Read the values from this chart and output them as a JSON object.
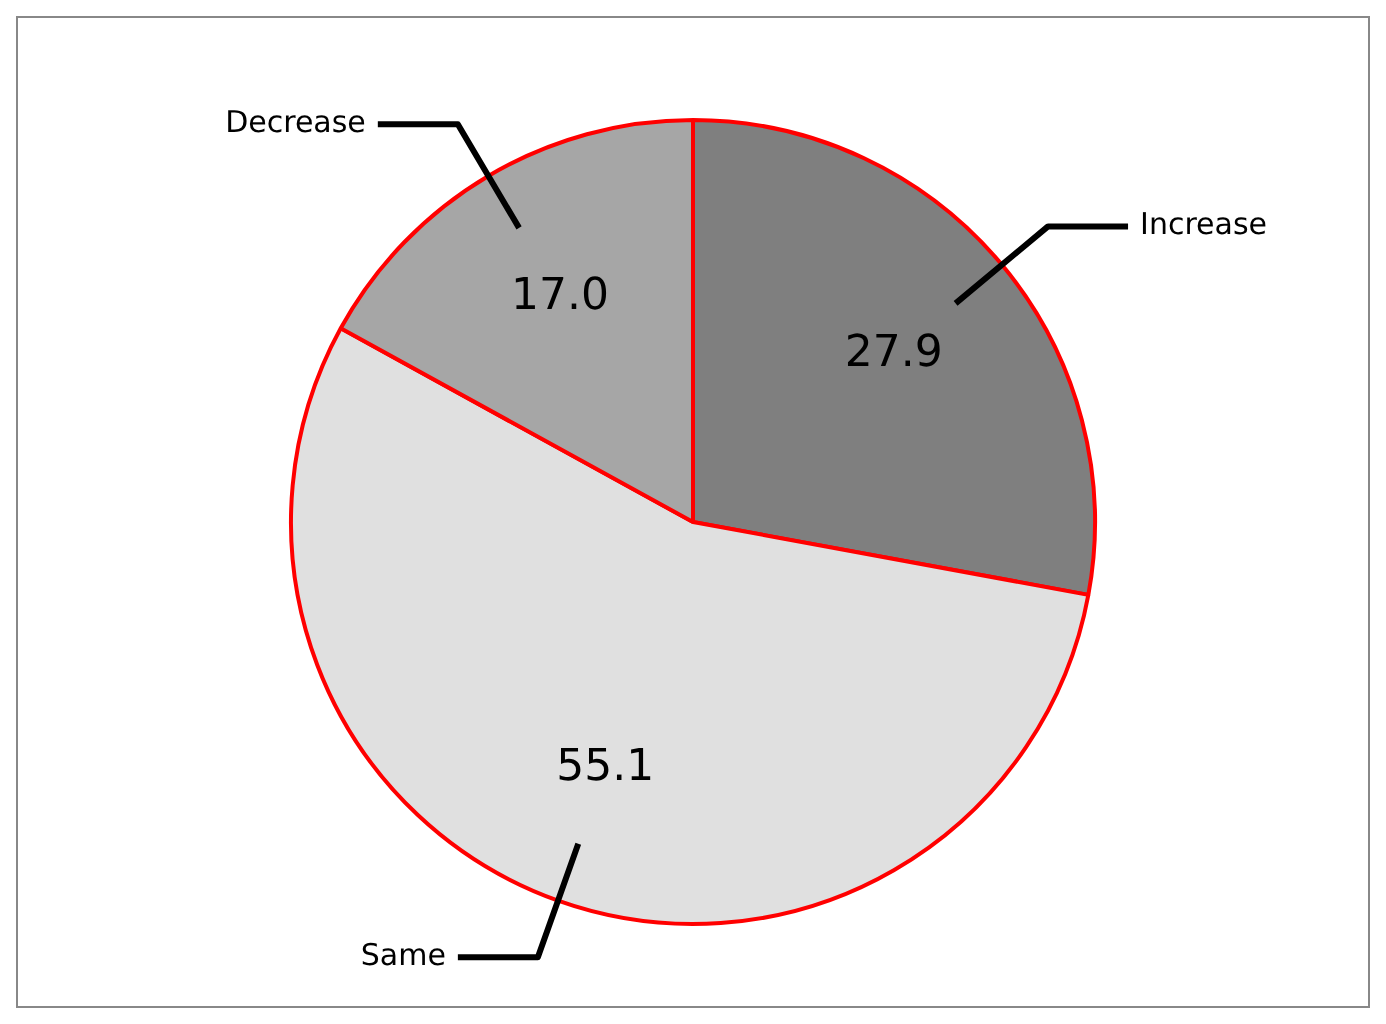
{
  "chart_data": {
    "type": "pie",
    "categories": [
      "Increase",
      "Same",
      "Decrease"
    ],
    "values": [
      27.9,
      55.1,
      17.0
    ],
    "value_labels": [
      "27.9",
      "55.1",
      "17.0"
    ],
    "colors": [
      "#7f7f7f",
      "#e0e0e0",
      "#a6a6a6"
    ],
    "legend": false
  }
}
